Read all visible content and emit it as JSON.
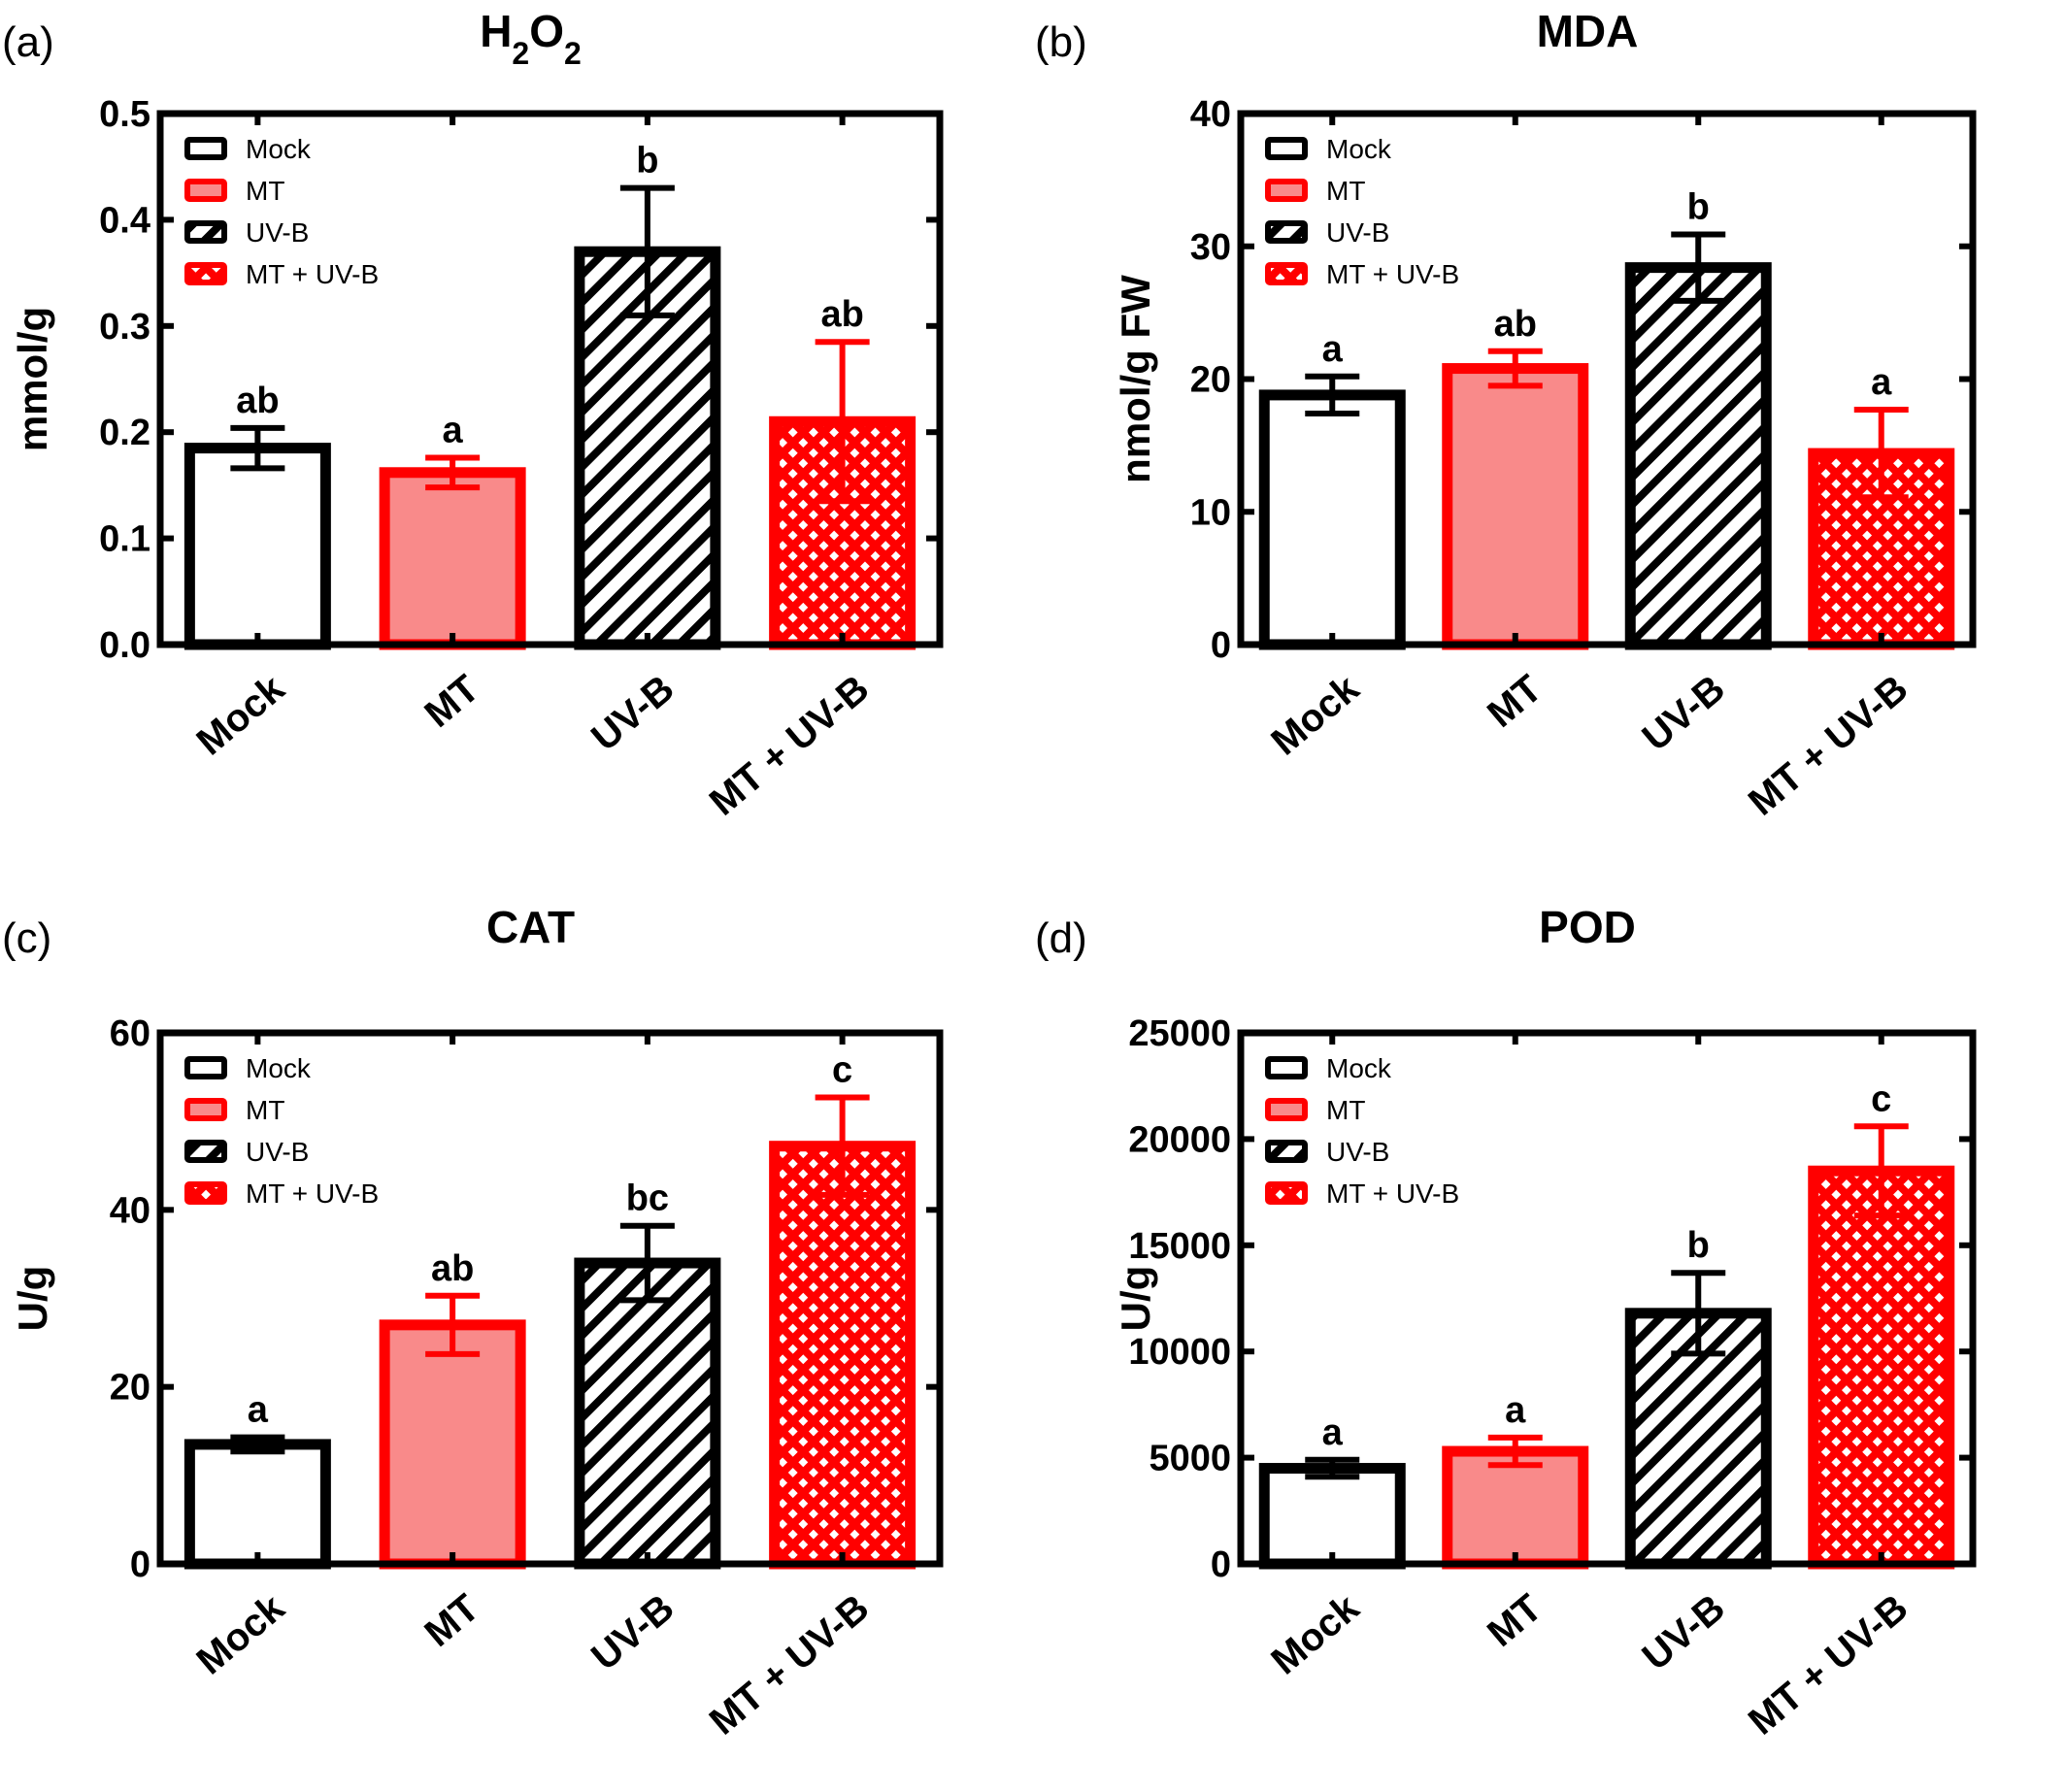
{
  "chart_data": [
    {
      "panel": "(a)",
      "type": "bar",
      "title": "H2O2",
      "title_main": "H",
      "title_sub1": "2",
      "title_mid": "O",
      "title_sub2": "2",
      "ylabel": "mmol/g",
      "ylim": [
        0,
        0.5
      ],
      "yticks": [
        "0.0",
        "0.1",
        "0.2",
        "0.3",
        "0.4",
        "0.5"
      ],
      "categories": [
        "Mock",
        "MT",
        "UV-B",
        "MT + UV-B"
      ],
      "values": [
        0.185,
        0.162,
        0.37,
        0.21
      ],
      "errors": [
        0.019,
        0.014,
        0.06,
        0.075
      ],
      "letters": [
        "ab",
        "a",
        "b",
        "ab"
      ],
      "legend": [
        "Mock",
        "MT",
        "UV-B",
        "MT + UV-B"
      ]
    },
    {
      "panel": "(b)",
      "type": "bar",
      "title": "MDA",
      "ylabel": "nmol/g FW",
      "ylim": [
        0,
        40
      ],
      "yticks": [
        "0",
        "10",
        "20",
        "30",
        "40"
      ],
      "categories": [
        "Mock",
        "MT",
        "UV-B",
        "MT + UV-B"
      ],
      "values": [
        18.8,
        20.8,
        28.4,
        14.4
      ],
      "errors": [
        1.4,
        1.3,
        2.5,
        3.3
      ],
      "letters": [
        "a",
        "ab",
        "b",
        "a"
      ],
      "legend": [
        "Mock",
        "MT",
        "UV-B",
        "MT + UV-B"
      ]
    },
    {
      "panel": "(c)",
      "type": "bar",
      "title": "CAT",
      "ylabel": "U/g",
      "ylim": [
        0,
        60
      ],
      "yticks": [
        "0",
        "20",
        "40",
        "60"
      ],
      "categories": [
        "Mock",
        "MT",
        "UV-B",
        "MT + UV-B"
      ],
      "values": [
        13.5,
        27,
        34,
        47.2
      ],
      "errors": [
        0.8,
        3.3,
        4.2,
        5.5
      ],
      "letters": [
        "a",
        "ab",
        "bc",
        "c"
      ],
      "legend": [
        "Mock",
        "MT",
        "UV-B",
        "MT + UV-B"
      ]
    },
    {
      "panel": "(d)",
      "type": "bar",
      "title": "POD",
      "ylabel": "U/g",
      "ylim": [
        0,
        25000
      ],
      "yticks": [
        "0",
        "5000",
        "10000",
        "15000",
        "20000",
        "25000"
      ],
      "categories": [
        "Mock",
        "MT",
        "UV-B",
        "MT + UV-B"
      ],
      "values": [
        4500,
        5300,
        11800,
        18500
      ],
      "errors": [
        400,
        650,
        1900,
        2100
      ],
      "letters": [
        "a",
        "a",
        "b",
        "c"
      ],
      "legend": [
        "Mock",
        "MT",
        "UV-B",
        "MT + UV-B"
      ]
    }
  ],
  "colors": {
    "black": "#000000",
    "red": "#ff0000",
    "light_red": "#f98a8a",
    "white": "#ffffff"
  }
}
